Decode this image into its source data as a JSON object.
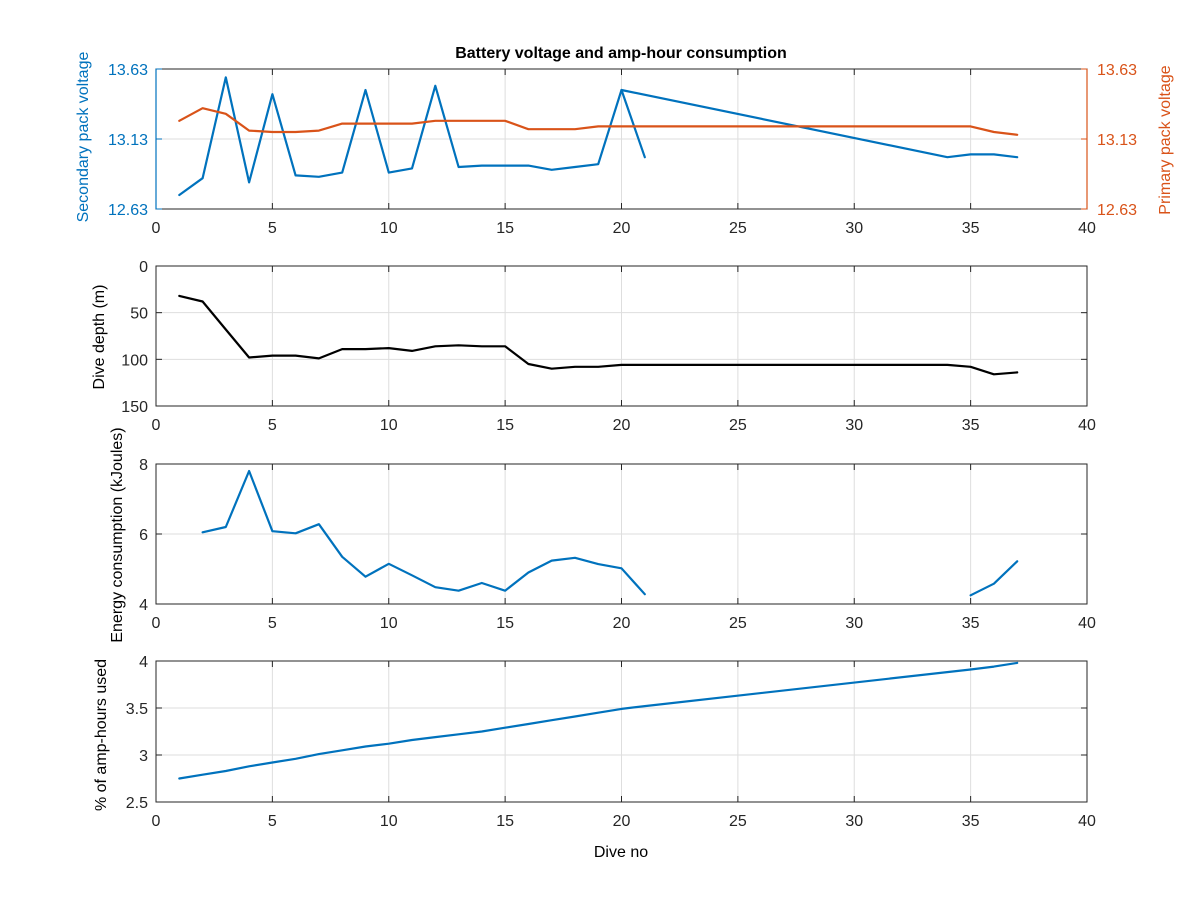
{
  "figure": {
    "title": "Battery voltage and amp-hour consumption",
    "xlabel": "Dive no"
  },
  "colors": {
    "blue": "#0072BD",
    "orange": "#D95319",
    "black": "#000000",
    "grid": "#dedede"
  },
  "chart_data": [
    {
      "type": "line",
      "name": "voltage",
      "title": "Battery voltage and amp-hour consumption",
      "xlim": [
        0,
        40
      ],
      "xticks": [
        0,
        5,
        10,
        15,
        20,
        25,
        30,
        35,
        40
      ],
      "ylabel_left": "Secondary pack voltage",
      "ylabel_right": "Primary pack voltage",
      "ylim": [
        12.63,
        13.63
      ],
      "yticks": [
        12.63,
        13.13,
        13.63
      ],
      "ytick_labels": [
        "12.63",
        "13.13",
        "13.63"
      ],
      "grid": true,
      "series": [
        {
          "axis": "left",
          "color": "#0072BD",
          "x": [
            1,
            2,
            3,
            4,
            5,
            6,
            7,
            8,
            9,
            10,
            11,
            12,
            13,
            14,
            15,
            16,
            17,
            18,
            19,
            20,
            21
          ],
          "y": [
            12.73,
            12.85,
            13.57,
            12.82,
            13.45,
            12.87,
            12.86,
            12.89,
            13.48,
            12.89,
            12.92,
            13.51,
            12.93,
            12.94,
            12.94,
            12.94,
            12.91,
            12.93,
            12.95,
            13.48,
            13.0
          ]
        },
        {
          "axis": "left",
          "color": "#0072BD",
          "x": [
            20,
            34,
            35,
            36,
            37
          ],
          "y": [
            13.48,
            13.0,
            13.02,
            13.02,
            13.0
          ]
        },
        {
          "axis": "right",
          "color": "#D95319",
          "x": [
            1,
            2,
            3,
            4,
            5,
            6,
            7,
            8,
            9,
            10,
            11,
            12,
            13,
            14,
            15,
            16,
            17,
            18,
            19,
            20,
            21,
            35,
            36,
            37
          ],
          "y": [
            13.26,
            13.35,
            13.31,
            13.19,
            13.18,
            13.18,
            13.19,
            13.24,
            13.24,
            13.24,
            13.24,
            13.26,
            13.26,
            13.26,
            13.26,
            13.2,
            13.2,
            13.2,
            13.22,
            13.22,
            13.22,
            13.22,
            13.18,
            13.16
          ]
        }
      ]
    },
    {
      "type": "line",
      "name": "depth",
      "xlim": [
        0,
        40
      ],
      "xticks": [
        0,
        5,
        10,
        15,
        20,
        25,
        30,
        35,
        40
      ],
      "ylabel": "Dive depth (m)",
      "ylim": [
        0,
        150
      ],
      "y_reversed": true,
      "yticks": [
        0,
        50,
        100,
        150
      ],
      "ytick_labels": [
        "0",
        "50",
        "100",
        "150"
      ],
      "grid": true,
      "series": [
        {
          "color": "#000000",
          "x": [
            1,
            2,
            3,
            4,
            5,
            6,
            7,
            8,
            9,
            10,
            11,
            12,
            13,
            14,
            15,
            16,
            17,
            18,
            19,
            20,
            34,
            35,
            36,
            37
          ],
          "y": [
            32,
            38,
            68,
            98,
            96,
            96,
            99,
            89,
            89,
            88,
            91,
            86,
            85,
            86,
            86,
            105,
            110,
            108,
            108,
            106,
            106,
            108,
            116,
            114
          ]
        }
      ]
    },
    {
      "type": "line",
      "name": "energy",
      "xlim": [
        0,
        40
      ],
      "xticks": [
        0,
        5,
        10,
        15,
        20,
        25,
        30,
        35,
        40
      ],
      "ylabel": "Energy consumption (kJoules)",
      "ylim": [
        4,
        8
      ],
      "yticks": [
        4,
        6,
        8
      ],
      "ytick_labels": [
        "4",
        "6",
        "8"
      ],
      "grid": true,
      "series": [
        {
          "color": "#0072BD",
          "x": [
            2,
            3,
            4,
            5,
            6,
            7,
            8,
            9,
            10,
            11,
            12,
            13,
            14,
            15,
            16,
            17,
            18,
            19,
            20,
            21
          ],
          "y": [
            6.05,
            6.2,
            7.8,
            6.08,
            6.02,
            6.28,
            5.35,
            4.78,
            5.15,
            4.82,
            4.48,
            4.38,
            4.6,
            4.38,
            4.9,
            5.24,
            5.32,
            5.14,
            5.02,
            4.28
          ]
        },
        {
          "color": "#0072BD",
          "x": [
            35,
            36,
            37
          ],
          "y": [
            4.25,
            4.58,
            5.22
          ]
        }
      ]
    },
    {
      "type": "line",
      "name": "amp-hours",
      "xlim": [
        0,
        40
      ],
      "xticks": [
        0,
        5,
        10,
        15,
        20,
        25,
        30,
        35,
        40
      ],
      "xlabel": "Dive no",
      "ylabel": "% of amp-hours used",
      "ylim": [
        2.5,
        4
      ],
      "yticks": [
        2.5,
        3,
        3.5,
        4
      ],
      "ytick_labels": [
        "2.5",
        "3",
        "3.5",
        "4"
      ],
      "grid": true,
      "series": [
        {
          "color": "#0072BD",
          "x": [
            1,
            2,
            3,
            4,
            5,
            6,
            7,
            8,
            9,
            10,
            11,
            12,
            13,
            14,
            15,
            16,
            17,
            18,
            19,
            20,
            21,
            35,
            36,
            37
          ],
          "y": [
            2.75,
            2.79,
            2.83,
            2.88,
            2.92,
            2.96,
            3.01,
            3.05,
            3.09,
            3.12,
            3.16,
            3.19,
            3.22,
            3.25,
            3.29,
            3.33,
            3.37,
            3.41,
            3.45,
            3.49,
            3.52,
            3.91,
            3.94,
            3.98
          ]
        }
      ]
    }
  ]
}
